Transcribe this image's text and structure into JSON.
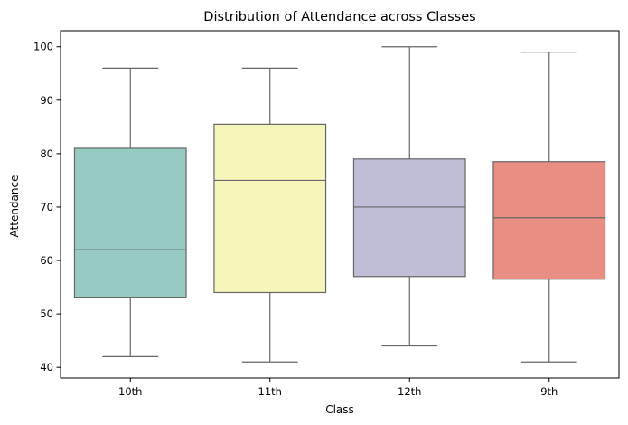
{
  "chart_data": {
    "type": "box",
    "title": "Distribution of Attendance across Classes",
    "xlabel": "Class",
    "ylabel": "Attendance",
    "ylim": [
      38,
      103
    ],
    "yticks": [
      40,
      50,
      60,
      70,
      80,
      90,
      100
    ],
    "grid": false,
    "legend": "none",
    "categories": [
      "10th",
      "11th",
      "12th",
      "9th"
    ],
    "boxes": [
      {
        "category": "10th",
        "whisker_low": 42,
        "q1": 53,
        "median": 62,
        "q3": 81,
        "whisker_high": 96,
        "color": "#96cbc2"
      },
      {
        "category": "11th",
        "whisker_low": 41,
        "q1": 54,
        "median": 75,
        "q3": 85.5,
        "whisker_high": 96,
        "color": "#f6f6bb"
      },
      {
        "category": "12th",
        "whisker_low": 44,
        "q1": 57,
        "median": 70,
        "q3": 79,
        "whisker_high": 100,
        "color": "#c0bdd6"
      },
      {
        "category": "9th",
        "whisker_low": 41,
        "q1": 56.5,
        "median": 68,
        "q3": 78.5,
        "whisker_high": 99,
        "color": "#ea8e84"
      }
    ],
    "line_color": "#666666"
  }
}
